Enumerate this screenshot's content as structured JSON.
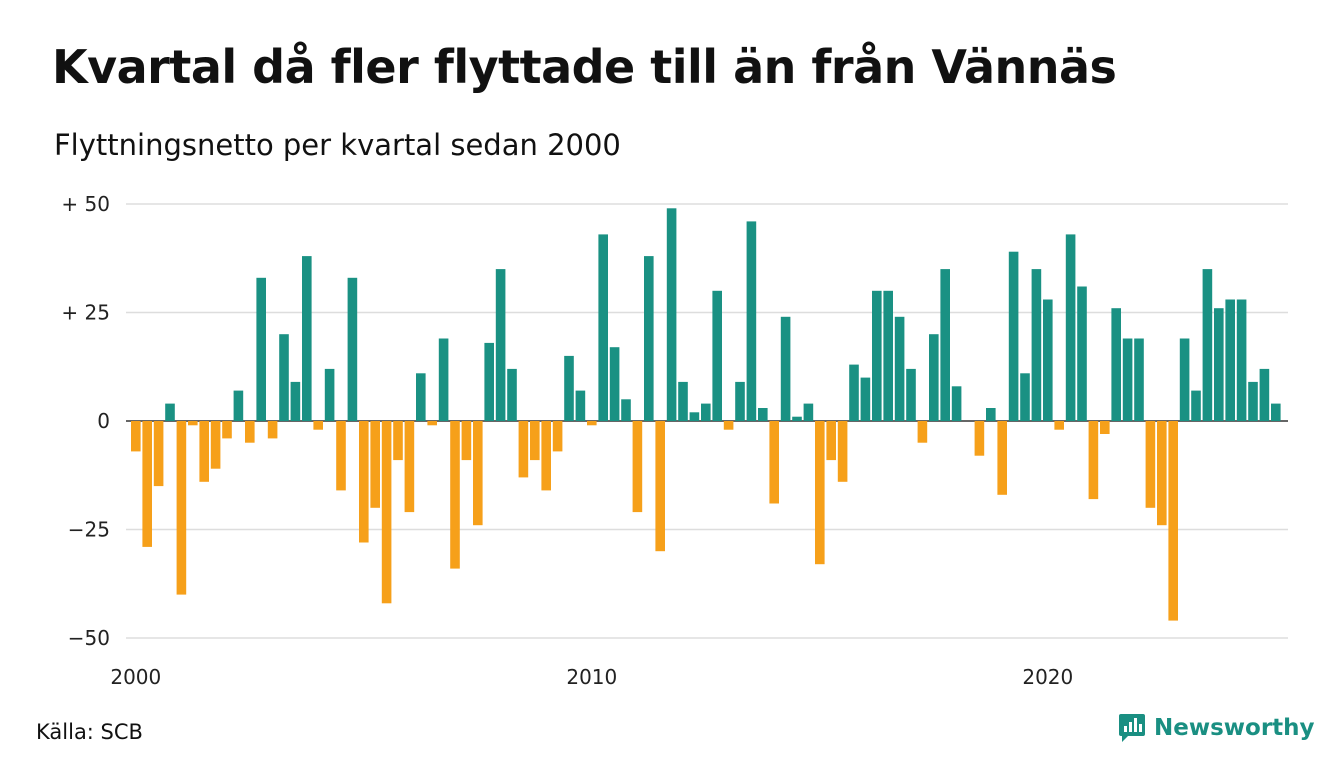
{
  "title": "Kvartal då fler flyttade till än från Vännäs",
  "subtitle": "Flyttningsnetto per kvartal sedan 2000",
  "source": "Källa: SCB",
  "brand": "Newsworthy",
  "brand_icon": "newsworthy-logo-icon",
  "colors": {
    "positive": "#1a9183",
    "negative": "#f6a01a",
    "grid": "#dddddd",
    "brand": "#1a8f82"
  },
  "chart_data": {
    "type": "bar",
    "title": "Kvartal då fler flyttade till än från Vännäs",
    "subtitle": "Flyttningsnetto per kvartal sedan 2000",
    "xlabel": "",
    "ylabel": "",
    "ylim": [
      -50,
      50
    ],
    "yticks": [
      50,
      25,
      0,
      -25,
      -50
    ],
    "ytick_labels": [
      "+ 50",
      "+ 25",
      "0",
      "−25",
      "−50"
    ],
    "xtick_labels": [
      "2000",
      "2010",
      "2020"
    ],
    "grid": true,
    "start": "2000 Q1",
    "values": [
      -7,
      -29,
      -15,
      4,
      -40,
      -1,
      -14,
      -11,
      -4,
      7,
      -5,
      33,
      -4,
      20,
      9,
      38,
      -2,
      12,
      -16,
      33,
      -28,
      -20,
      -42,
      -9,
      -21,
      11,
      -1,
      19,
      -34,
      -9,
      -24,
      18,
      35,
      12,
      -13,
      -9,
      -16,
      -7,
      15,
      7,
      -1,
      43,
      17,
      5,
      -21,
      38,
      -30,
      49,
      9,
      2,
      4,
      30,
      -2,
      9,
      46,
      3,
      -19,
      24,
      1,
      4,
      -33,
      -9,
      -14,
      13,
      10,
      30,
      30,
      24,
      12,
      -5,
      20,
      35,
      8,
      0,
      -8,
      3,
      -17,
      39,
      11,
      35,
      28,
      -2,
      43,
      31,
      -18,
      -3,
      26,
      19,
      19,
      -20,
      -24,
      -46,
      19,
      7,
      35,
      26,
      28,
      28,
      9,
      12,
      4
    ]
  }
}
